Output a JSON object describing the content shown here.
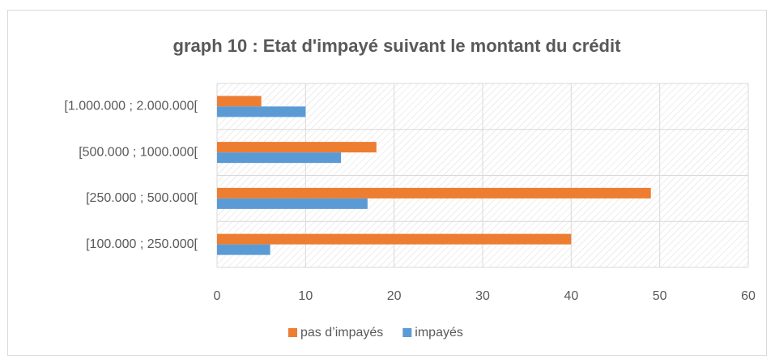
{
  "chart_data": {
    "type": "bar",
    "orientation": "horizontal",
    "title": "graph 10 : Etat d'impayé suivant le montant du crédit",
    "categories": [
      "[1.000.000 ; 2.000.000[",
      "[500.000 ; 1000.000[",
      "[250.000 ; 500.000[",
      "[100.000 ; 250.000["
    ],
    "series": [
      {
        "name": "pas d’impayés",
        "color": "#ed7d31",
        "values": [
          5,
          18,
          49,
          40
        ]
      },
      {
        "name": "impayés",
        "color": "#5b9bd5",
        "values": [
          10,
          14,
          17,
          6
        ]
      }
    ],
    "xlim": [
      0,
      60
    ],
    "xticks": [
      0,
      10,
      20,
      30,
      40,
      50,
      60
    ],
    "grid": true,
    "legend": "bottom"
  }
}
